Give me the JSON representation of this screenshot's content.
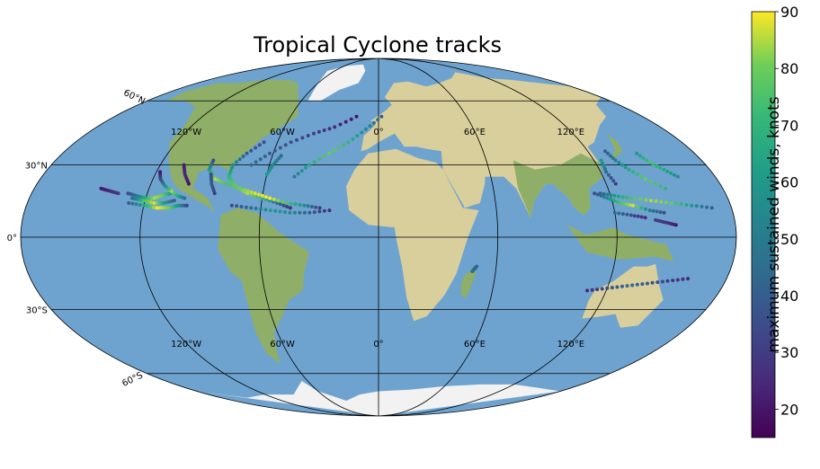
{
  "title": "Tropical Cyclone tracks",
  "colorbar": {
    "label": "maximum sustained winds, knots",
    "min": 15,
    "max": 90,
    "ticks": [
      "20",
      "30",
      "40",
      "50",
      "60",
      "70",
      "80",
      "90"
    ],
    "colormap": "viridis"
  },
  "map": {
    "projection": "Mollweide",
    "gridlines": true,
    "meridian_labels_top": [
      "120°W",
      "60°W",
      "0°",
      "60°E",
      "120°E"
    ],
    "meridian_labels_bottom": [
      "120°W",
      "60°W",
      "0°",
      "60°E",
      "120°E"
    ],
    "parallel_labels": [
      "60°N",
      "30°N",
      "0°",
      "30°S",
      "60°S"
    ],
    "colors": {
      "ocean": "#6fa3cf",
      "land": "#d9cf9c",
      "vegetation": "#8fae67",
      "ice": "#f2f2f2",
      "gridline": "#000000"
    }
  },
  "chart_data": {
    "type": "scatter",
    "title": "Tropical Cyclone tracks",
    "xlabel": "",
    "ylabel": "",
    "color_variable": "maximum sustained winds, knots",
    "color_range": [
      15,
      90
    ],
    "series": [
      {
        "points": [
          {
            "lon": -108,
            "lat": 18,
            "wind": 60
          },
          {
            "lon": -112,
            "lat": 17,
            "wind": 80
          },
          {
            "lon": -116,
            "lat": 16,
            "wind": 85
          },
          {
            "lon": -120,
            "lat": 16,
            "wind": 70
          },
          {
            "lon": -125,
            "lat": 17,
            "wind": 50
          },
          {
            "lon": -130,
            "lat": 18,
            "wind": 35
          }
        ]
      },
      {
        "points": [
          {
            "lon": -105,
            "lat": 15,
            "wind": 40
          },
          {
            "lon": -110,
            "lat": 14,
            "wind": 60
          },
          {
            "lon": -115,
            "lat": 14,
            "wind": 88
          },
          {
            "lon": -121,
            "lat": 15,
            "wind": 75
          },
          {
            "lon": -127,
            "lat": 16,
            "wind": 45
          }
        ]
      },
      {
        "points": [
          {
            "lon": -100,
            "lat": 16,
            "wind": 45
          },
          {
            "lon": -104,
            "lat": 17,
            "wind": 65
          },
          {
            "lon": -108,
            "lat": 19,
            "wind": 85
          },
          {
            "lon": -112,
            "lat": 21,
            "wind": 60
          },
          {
            "lon": -116,
            "lat": 24,
            "wind": 35
          },
          {
            "lon": -118,
            "lat": 27,
            "wind": 20
          }
        ]
      },
      {
        "points": [
          {
            "lon": -98,
            "lat": 13,
            "wind": 30
          },
          {
            "lon": -102,
            "lat": 13,
            "wind": 55
          },
          {
            "lon": -107,
            "lat": 12,
            "wind": 80
          },
          {
            "lon": -113,
            "lat": 12,
            "wind": 90
          },
          {
            "lon": -120,
            "lat": 13,
            "wind": 65
          },
          {
            "lon": -128,
            "lat": 14,
            "wind": 40
          }
        ]
      },
      {
        "points": [
          {
            "lon": -135,
            "lat": 18,
            "wind": 30
          },
          {
            "lon": -140,
            "lat": 19,
            "wind": 25
          },
          {
            "lon": -145,
            "lat": 20,
            "wind": 20
          }
        ]
      },
      {
        "points": [
          {
            "lon": -100,
            "lat": 22,
            "wind": 20
          },
          {
            "lon": -104,
            "lat": 26,
            "wind": 25
          },
          {
            "lon": -107,
            "lat": 30,
            "wind": 22
          }
        ]
      },
      {
        "points": [
          {
            "lon": -45,
            "lat": 12,
            "wind": 25
          },
          {
            "lon": -52,
            "lat": 14,
            "wind": 45
          },
          {
            "lon": -60,
            "lat": 16,
            "wind": 70
          },
          {
            "lon": -68,
            "lat": 18,
            "wind": 85
          },
          {
            "lon": -75,
            "lat": 21,
            "wind": 80
          },
          {
            "lon": -80,
            "lat": 25,
            "wind": 70
          },
          {
            "lon": -80,
            "lat": 30,
            "wind": 55
          },
          {
            "lon": -75,
            "lat": 35,
            "wind": 40
          },
          {
            "lon": -68,
            "lat": 40,
            "wind": 35
          }
        ]
      },
      {
        "points": [
          {
            "lon": -30,
            "lat": 12,
            "wind": 30
          },
          {
            "lon": -38,
            "lat": 13,
            "wind": 55
          },
          {
            "lon": -47,
            "lat": 14,
            "wind": 75
          },
          {
            "lon": -56,
            "lat": 16,
            "wind": 90
          },
          {
            "lon": -64,
            "lat": 18,
            "wind": 88
          },
          {
            "lon": -72,
            "lat": 20,
            "wind": 80
          },
          {
            "lon": -80,
            "lat": 22,
            "wind": 75
          },
          {
            "lon": -87,
            "lat": 24,
            "wind": 85
          },
          {
            "lon": -92,
            "lat": 28,
            "wind": 60
          },
          {
            "lon": -92,
            "lat": 32,
            "wind": 35
          }
        ]
      },
      {
        "points": [
          {
            "lon": -25,
            "lat": 11,
            "wind": 25
          },
          {
            "lon": -35,
            "lat": 10,
            "wind": 40
          },
          {
            "lon": -45,
            "lat": 10,
            "wind": 55
          },
          {
            "lon": -55,
            "lat": 11,
            "wind": 60
          },
          {
            "lon": -65,
            "lat": 12,
            "wind": 45
          },
          {
            "lon": -75,
            "lat": 13,
            "wind": 35
          }
        ]
      },
      {
        "points": [
          {
            "lon": -70,
            "lat": 30,
            "wind": 45
          },
          {
            "lon": -62,
            "lat": 35,
            "wind": 40
          },
          {
            "lon": -52,
            "lat": 40,
            "wind": 35
          },
          {
            "lon": -40,
            "lat": 44,
            "wind": 30
          },
          {
            "lon": -28,
            "lat": 47,
            "wind": 25
          },
          {
            "lon": -15,
            "lat": 52,
            "wind": 20
          }
        ]
      },
      {
        "points": [
          {
            "lon": -45,
            "lat": 25,
            "wind": 50
          },
          {
            "lon": -38,
            "lat": 30,
            "wind": 65
          },
          {
            "lon": -28,
            "lat": 35,
            "wind": 80
          },
          {
            "lon": -18,
            "lat": 40,
            "wind": 70
          },
          {
            "lon": -8,
            "lat": 46,
            "wind": 55
          },
          {
            "lon": 2,
            "lat": 52,
            "wind": 40
          }
        ]
      },
      {
        "points": [
          {
            "lon": -60,
            "lat": 26,
            "wind": 60
          },
          {
            "lon": -58,
            "lat": 30,
            "wind": 55
          },
          {
            "lon": -55,
            "lat": 34,
            "wind": 45
          }
        ]
      },
      {
        "points": [
          {
            "lon": -85,
            "lat": 18,
            "wind": 30
          },
          {
            "lon": -88,
            "lat": 22,
            "wind": 40
          },
          {
            "lon": -90,
            "lat": 26,
            "wind": 35
          }
        ]
      },
      {
        "points": [
          {
            "lon": 170,
            "lat": 12,
            "wind": 40
          },
          {
            "lon": 160,
            "lat": 13,
            "wind": 60
          },
          {
            "lon": 150,
            "lat": 14,
            "wind": 80
          },
          {
            "lon": 140,
            "lat": 15,
            "wind": 85
          },
          {
            "lon": 130,
            "lat": 16,
            "wind": 75
          },
          {
            "lon": 122,
            "lat": 17,
            "wind": 60
          },
          {
            "lon": 115,
            "lat": 18,
            "wind": 40
          }
        ]
      },
      {
        "points": [
          {
            "lon": 150,
            "lat": 20,
            "wind": 70
          },
          {
            "lon": 142,
            "lat": 24,
            "wind": 80
          },
          {
            "lon": 136,
            "lat": 28,
            "wind": 65
          },
          {
            "lon": 132,
            "lat": 32,
            "wind": 50
          },
          {
            "lon": 130,
            "lat": 36,
            "wind": 40
          }
        ]
      },
      {
        "points": [
          {
            "lon": 145,
            "lat": 10,
            "wind": 35
          },
          {
            "lon": 138,
            "lat": 11,
            "wind": 50
          },
          {
            "lon": 130,
            "lat": 13,
            "wind": 88
          },
          {
            "lon": 124,
            "lat": 14,
            "wind": 75
          },
          {
            "lon": 118,
            "lat": 16,
            "wind": 55
          },
          {
            "lon": 112,
            "lat": 18,
            "wind": 35
          }
        ]
      },
      {
        "points": [
          {
            "lon": 160,
            "lat": 25,
            "wind": 55
          },
          {
            "lon": 155,
            "lat": 28,
            "wind": 65
          },
          {
            "lon": 150,
            "lat": 31,
            "wind": 75
          },
          {
            "lon": 147,
            "lat": 35,
            "wind": 60
          }
        ]
      },
      {
        "points": [
          {
            "lon": 135,
            "lat": 8,
            "wind": 25
          },
          {
            "lon": 128,
            "lat": 9,
            "wind": 35
          },
          {
            "lon": 120,
            "lat": 10,
            "wind": 45
          }
        ]
      },
      {
        "points": [
          {
            "lon": 125,
            "lat": 22,
            "wind": 30
          },
          {
            "lon": 123,
            "lat": 27,
            "wind": 45
          },
          {
            "lon": 124,
            "lat": 32,
            "wind": 60
          }
        ]
      },
      {
        "points": [
          {
            "lon": 150,
            "lat": 5,
            "wind": 20
          },
          {
            "lon": 145,
            "lat": 6,
            "wind": 28
          },
          {
            "lon": 140,
            "lat": 7,
            "wind": 30
          }
        ]
      },
      {
        "points": [
          {
            "lon": 160,
            "lat": -17,
            "wind": 25
          },
          {
            "lon": 150,
            "lat": -18,
            "wind": 30
          },
          {
            "lon": 140,
            "lat": -19,
            "wind": 40
          },
          {
            "lon": 130,
            "lat": -20,
            "wind": 45
          },
          {
            "lon": 120,
            "lat": -21,
            "wind": 35
          },
          {
            "lon": 110,
            "lat": -22,
            "wind": 25
          }
        ]
      },
      {
        "points": [
          {
            "lon": 50,
            "lat": -12,
            "wind": 40
          },
          {
            "lon": 48,
            "lat": -14,
            "wind": 45
          }
        ]
      }
    ]
  }
}
